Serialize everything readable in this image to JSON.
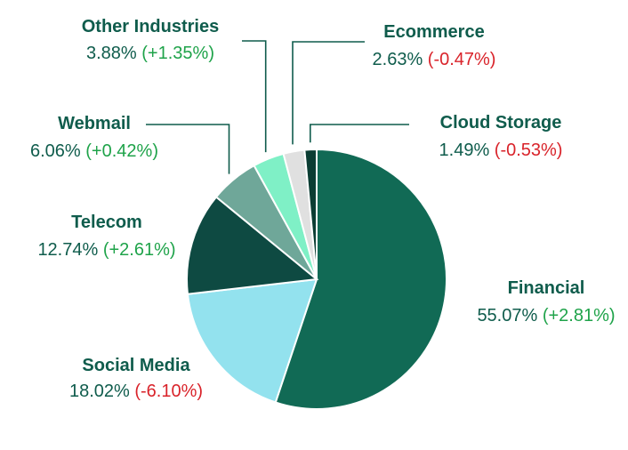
{
  "chart_data": {
    "type": "pie",
    "title": "",
    "slices": [
      {
        "category": "Financial",
        "value": 55.07,
        "value_label": "55.07%",
        "change": "(+2.81%)",
        "change_dir": "pos",
        "color": "#116a55"
      },
      {
        "category": "Social Media",
        "value": 18.02,
        "value_label": "18.02%",
        "change": "(-6.10%)",
        "change_dir": "neg",
        "color": "#93e2ee"
      },
      {
        "category": "Telecom",
        "value": 12.74,
        "value_label": "12.74%",
        "change": "(+2.61%)",
        "change_dir": "pos",
        "color": "#0e4a42"
      },
      {
        "category": "Webmail",
        "value": 6.06,
        "value_label": "6.06%",
        "change": "(+0.42%)",
        "change_dir": "pos",
        "color": "#6fa799"
      },
      {
        "category": "Other Industries",
        "value": 3.88,
        "value_label": "3.88%",
        "change": "(+1.35%)",
        "change_dir": "pos",
        "color": "#7ff0c6"
      },
      {
        "category": "Ecommerce",
        "value": 2.63,
        "value_label": "2.63%",
        "change": "(-0.47%)",
        "change_dir": "neg",
        "color": "#e0e0e0"
      },
      {
        "category": "Cloud Storage",
        "value": 1.49,
        "value_label": "1.49%",
        "change": "(-0.53%)",
        "change_dir": "neg",
        "color": "#0b3d33"
      }
    ]
  }
}
